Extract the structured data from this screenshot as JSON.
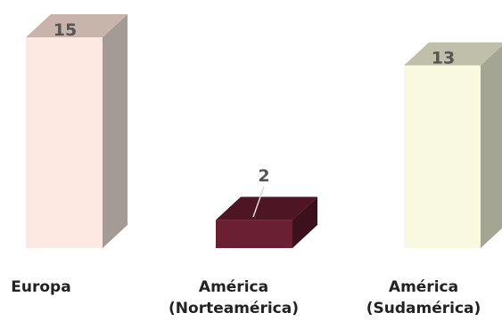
{
  "chart_data": {
    "type": "bar",
    "style": "3d-column",
    "title": "",
    "xlabel": "",
    "ylabel": "",
    "grid": false,
    "legend": "none",
    "categories": [
      [
        "Europa"
      ],
      [
        "América",
        "(Norteamérica)"
      ],
      [
        "América",
        "(Sudamérica)"
      ]
    ],
    "values": [
      15,
      2,
      13
    ],
    "ylim": [
      0,
      15
    ],
    "bar_colors": [
      {
        "front": "#fde9e1",
        "top": "#c9b4ac",
        "side": "#a59b95"
      },
      {
        "front": "#6b1f33",
        "top": "#4e1524",
        "side": "#3c101c"
      },
      {
        "front": "#f9f9e1",
        "top": "#bfbfaa",
        "side": "#a4a593"
      }
    ]
  }
}
